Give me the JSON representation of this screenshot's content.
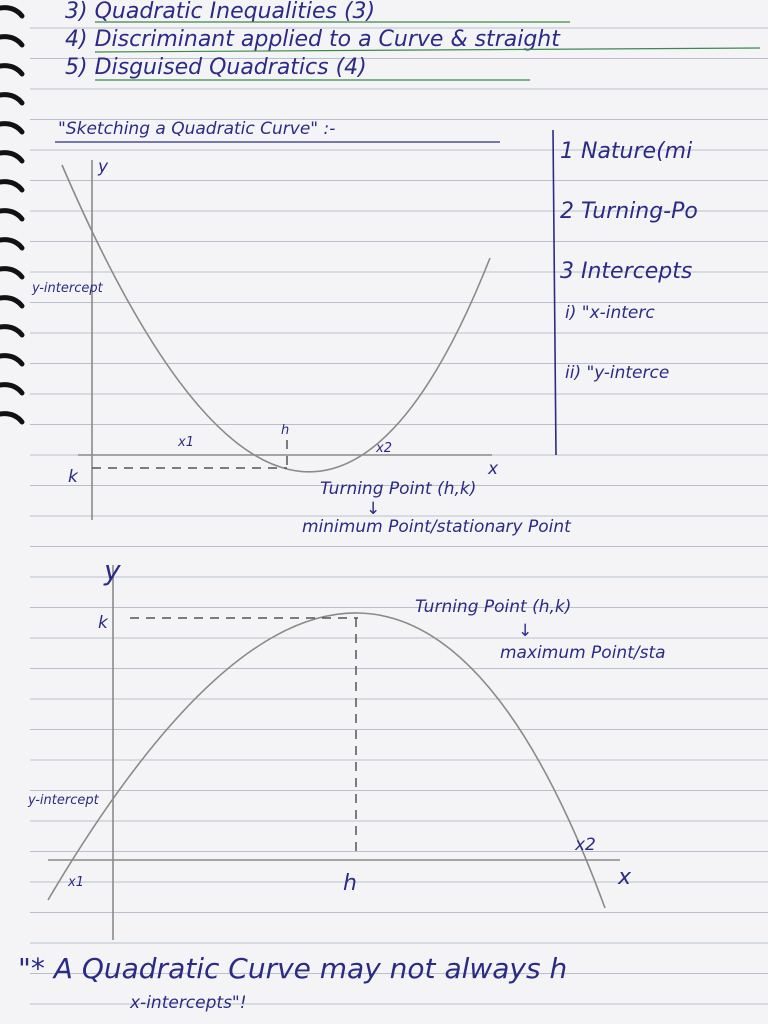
{
  "topics": [
    "3) Quadratic Inequalities (3)",
    "4) Discriminant applied to a Curve & straight",
    "5) Disguised Quadratics (4)"
  ],
  "section_title": "\"Sketching a Quadratic Curve\" :-",
  "checklist": [
    "1 Nature(mi",
    "2 Turning-Po",
    "3 Intercepts",
    "i) \"x-interc",
    "ii) \"y-interce"
  ],
  "graph_min": {
    "y_axis": "y",
    "y_intercept": "y-intercept",
    "x1": "x1",
    "h": "h",
    "x2": "x2",
    "x_axis": "x",
    "k": "k",
    "turning_point": "Turning Point (h,k)",
    "arrow": "↓",
    "description": "minimum Point/stationary Point"
  },
  "graph_max": {
    "y_axis": "y",
    "k": "k",
    "turning_point": "Turning Point (h,k)",
    "arrow": "↓",
    "description": "maximum Point/sta",
    "y_intercept": "y-intercept",
    "x1": "x1",
    "h": "h",
    "x2": "x2",
    "x_axis": "x"
  },
  "note": [
    "\"* A Quadratic Curve may not always h",
    "x-intercepts\"!"
  ]
}
